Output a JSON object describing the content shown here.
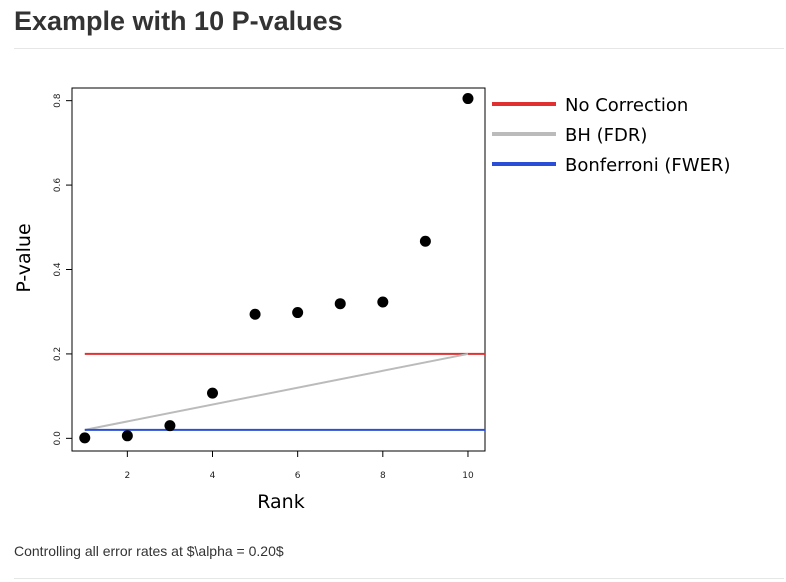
{
  "page": {
    "title": "Example with 10 P-values",
    "caption": "Controlling all error rates at $\\alpha = 0.20$"
  },
  "chart_data": {
    "type": "scatter",
    "title": "",
    "xlabel": "Rank",
    "ylabel": "P-value",
    "xlim": [
      0.7,
      10.4
    ],
    "ylim": [
      -0.03,
      0.83
    ],
    "x_ticks": [
      2,
      4,
      6,
      8,
      10
    ],
    "y_ticks": [
      0.0,
      0.2,
      0.4,
      0.6,
      0.8
    ],
    "x_tick_labels": [
      "2",
      "4",
      "6",
      "8",
      "10"
    ],
    "y_tick_labels": [
      "0.0",
      "0.2",
      "0.4",
      "0.6",
      "0.8"
    ],
    "grid": false,
    "legend_position": "outside-right",
    "points": {
      "x": [
        1,
        2,
        3,
        4,
        5,
        6,
        7,
        8,
        9,
        10
      ],
      "y": [
        0.001,
        0.006,
        0.03,
        0.107,
        0.294,
        0.298,
        0.319,
        0.323,
        0.467,
        0.805
      ],
      "color": "#000000"
    },
    "lines": [
      {
        "name": "No Correction",
        "color": "#e03030",
        "x": [
          1,
          10.4
        ],
        "y": [
          0.2,
          0.2
        ]
      },
      {
        "name": "BH (FDR)",
        "color": "#bbbbbb",
        "x": [
          1,
          10
        ],
        "y": [
          0.02,
          0.2
        ]
      },
      {
        "name": "Bonferroni (FWER)",
        "color": "#2a4fd6",
        "x": [
          1,
          10.4
        ],
        "y": [
          0.02,
          0.02
        ]
      }
    ]
  }
}
